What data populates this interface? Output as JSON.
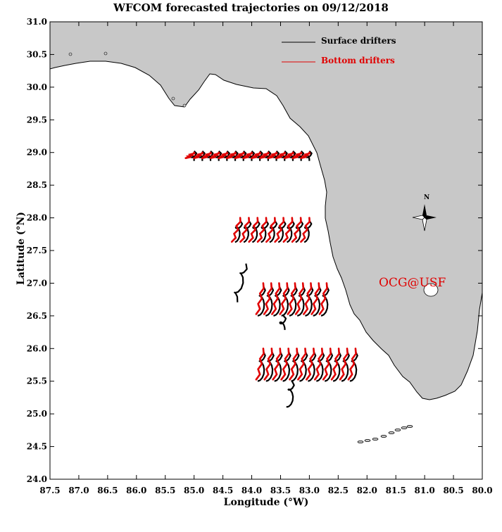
{
  "title": "WFCOM forecasted trajectories on 09/12/2018",
  "xlabel": "Longitude (°W)",
  "ylabel": "Latitude (°N)",
  "watermark": "OCG@USF",
  "compass_label": "N",
  "legend": {
    "surface": "Surface drifters",
    "bottom": "Bottom drifters"
  },
  "colors": {
    "land": "#c8c8c8",
    "surface": "#000000",
    "bottom": "#e00000"
  },
  "axes": {
    "x_range": [
      87.5,
      80.0
    ],
    "y_range": [
      24.0,
      31.0
    ],
    "x_ticks": [
      "87.5",
      "87.0",
      "86.5",
      "86.0",
      "85.5",
      "85.0",
      "84.5",
      "84.0",
      "83.5",
      "83.0",
      "82.5",
      "82.0",
      "81.5",
      "81.0",
      "80.5",
      "80.0"
    ],
    "y_ticks": [
      "24.0",
      "24.5",
      "25.0",
      "25.5",
      "26.0",
      "26.5",
      "27.0",
      "27.5",
      "28.0",
      "28.5",
      "29.0",
      "29.5",
      "30.0",
      "30.5",
      "31.0"
    ]
  },
  "release_rows": [
    {
      "lat": 29.0,
      "lon_start": 85.0,
      "lon_end": 83.0
    },
    {
      "lat": 28.0,
      "lon_start": 84.2,
      "lon_end": 83.0
    },
    {
      "lat": 27.0,
      "lon_start": 83.8,
      "lon_end": 82.7
    },
    {
      "lat": 26.0,
      "lon_start": 83.8,
      "lon_end": 82.2
    }
  ]
}
